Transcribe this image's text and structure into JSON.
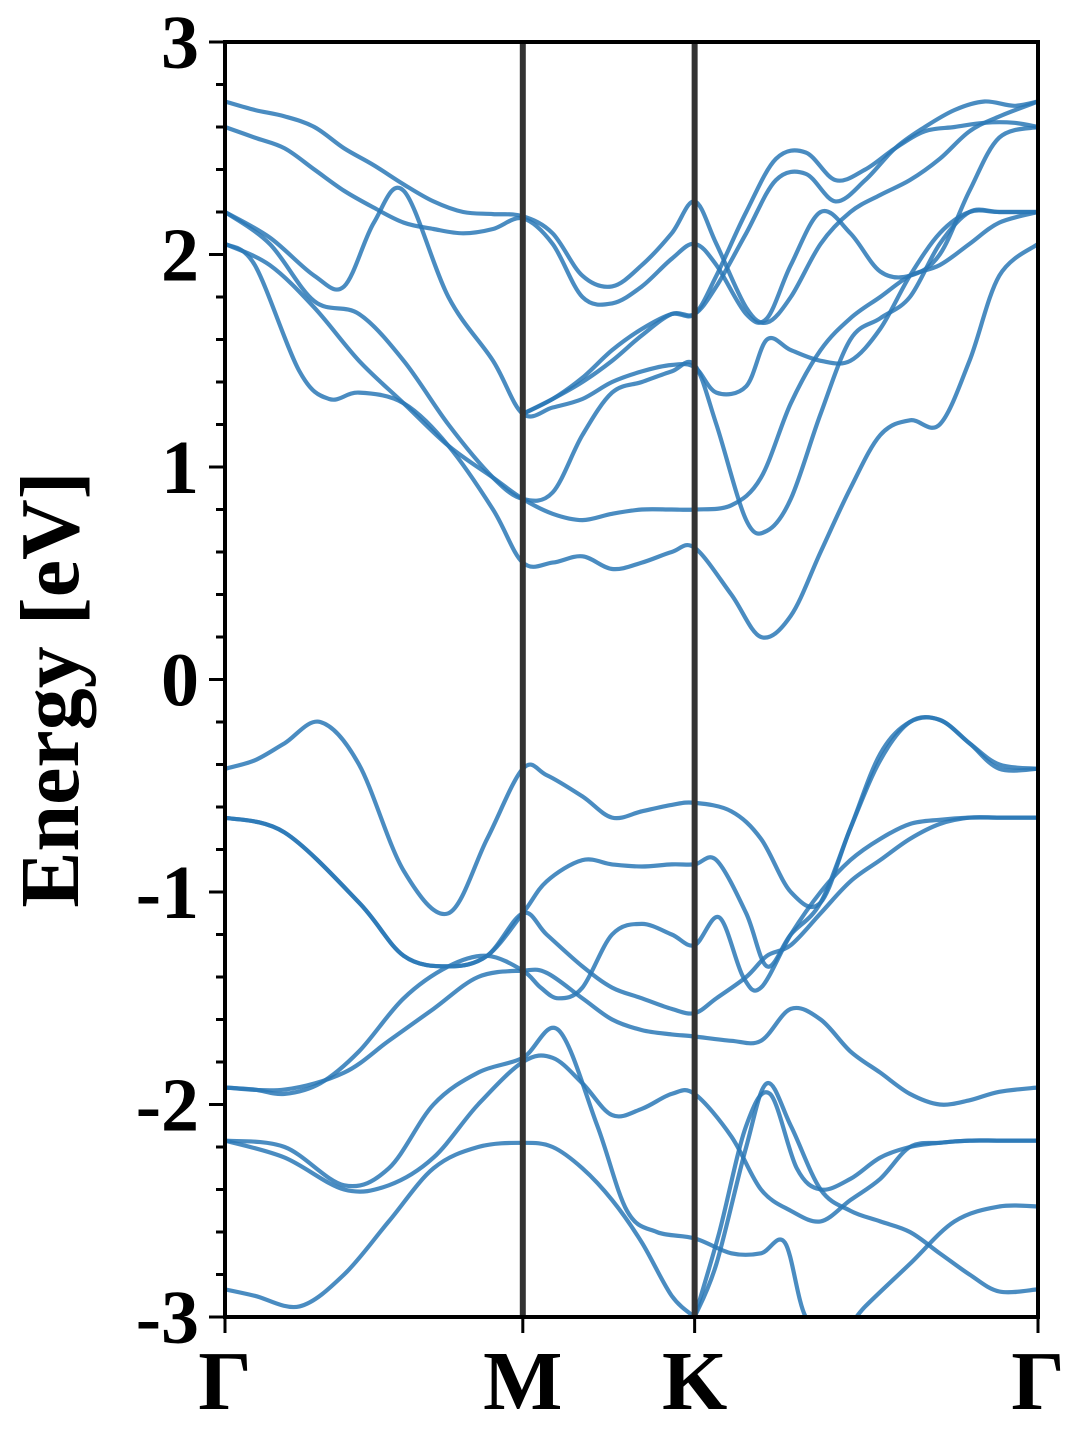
{
  "chart_data": {
    "type": "line",
    "title": "",
    "xlabel": "",
    "ylabel": "Energy [eV]",
    "ylim": [
      -3,
      3
    ],
    "xlim": [
      0,
      2.73
    ],
    "grid": false,
    "legend": "none",
    "band_color": "#2a78b6",
    "kpoint_line_color": "#333333",
    "x_ticks": [
      {
        "label": "Γ",
        "value": 0
      },
      {
        "label": "M",
        "value": 1.0
      },
      {
        "label": "K",
        "value": 1.577
      },
      {
        "label": "Γ",
        "value": 2.73
      }
    ],
    "y_ticks": [
      {
        "label": "-3",
        "value": -3
      },
      {
        "label": "-2",
        "value": -2
      },
      {
        "label": "-1",
        "value": -1
      },
      {
        "label": "0",
        "value": 0
      },
      {
        "label": "1",
        "value": 1
      },
      {
        "label": "2",
        "value": 2
      },
      {
        "label": "3",
        "value": 3
      }
    ],
    "kpoint_lines": [
      1.0,
      1.577
    ],
    "series": [
      {
        "x": [
          0,
          0.1,
          0.2,
          0.32,
          0.45,
          0.6,
          0.75,
          0.88,
          1.0,
          1.08,
          1.2,
          1.3,
          1.4,
          1.5,
          1.577,
          1.7,
          1.8,
          1.9,
          2.0,
          2.1,
          2.2,
          2.3,
          2.4,
          2.5,
          2.6,
          2.73
        ],
        "y": [
          -0.42,
          -0.38,
          -0.3,
          -0.2,
          -0.4,
          -0.9,
          -1.1,
          -0.75,
          -0.42,
          -0.45,
          -0.55,
          -0.65,
          -0.62,
          -0.59,
          -0.58,
          -0.62,
          -0.75,
          -1.0,
          -1.05,
          -0.7,
          -0.38,
          -0.2,
          -0.19,
          -0.3,
          -0.4,
          -0.42
        ]
      },
      {
        "x": [
          0,
          0.2,
          0.45,
          0.6,
          0.75,
          0.88,
          1.0,
          1.08,
          1.2,
          1.3,
          1.4,
          1.5,
          1.577,
          1.65,
          1.75,
          1.82,
          1.9,
          2.0,
          2.1,
          2.2,
          2.3,
          2.4,
          2.5,
          2.6,
          2.73
        ],
        "y": [
          -0.65,
          -0.72,
          -1.05,
          -1.3,
          -1.35,
          -1.3,
          -1.1,
          -0.95,
          -0.85,
          -0.87,
          -0.88,
          -0.87,
          -0.87,
          -0.85,
          -1.1,
          -1.35,
          -1.2,
          -1.05,
          -0.7,
          -0.35,
          -0.2,
          -0.19,
          -0.3,
          -0.42,
          -0.42
        ]
      },
      {
        "x": [
          0,
          0.2,
          0.45,
          0.6,
          0.75,
          0.88,
          1.0,
          1.08,
          1.2,
          1.3,
          1.4,
          1.5,
          1.577,
          1.65,
          1.75,
          1.82,
          1.9,
          2.0,
          2.1,
          2.2,
          2.3,
          2.4,
          2.5,
          2.6,
          2.73
        ],
        "y": [
          -0.65,
          -0.72,
          -1.05,
          -1.3,
          -1.35,
          -1.3,
          -1.1,
          -1.2,
          -1.35,
          -1.45,
          -1.5,
          -1.55,
          -1.57,
          -1.5,
          -1.4,
          -1.3,
          -1.25,
          -1.1,
          -0.95,
          -0.85,
          -0.75,
          -0.68,
          -0.65,
          -0.65,
          -0.65
        ]
      },
      {
        "x": [
          0,
          0.1,
          0.2,
          0.32,
          0.45,
          0.6,
          0.75,
          0.88,
          1.0,
          1.06,
          1.12,
          1.2,
          1.3,
          1.4,
          1.5,
          1.577,
          1.66,
          1.74,
          1.8,
          1.9,
          2.0,
          2.1,
          2.2,
          2.3,
          2.4,
          2.5,
          2.6,
          2.73
        ],
        "y": [
          -1.92,
          -1.93,
          -1.95,
          -1.9,
          -1.75,
          -1.5,
          -1.35,
          -1.3,
          -1.37,
          -1.45,
          -1.5,
          -1.45,
          -1.2,
          -1.15,
          -1.2,
          -1.25,
          -1.12,
          -1.4,
          -1.45,
          -1.2,
          -1.0,
          -0.85,
          -0.75,
          -0.68,
          -0.66,
          -0.65,
          -0.65,
          -0.65
        ]
      },
      {
        "x": [
          0,
          0.2,
          0.4,
          0.55,
          0.7,
          0.85,
          1.0,
          1.1,
          1.2,
          1.3,
          1.4,
          1.5,
          1.577,
          1.7,
          1.8,
          1.9,
          2.0,
          2.1,
          2.2,
          2.3,
          2.4,
          2.5,
          2.6,
          2.73
        ],
        "y": [
          -2.17,
          -2.25,
          -2.4,
          -2.38,
          -2.25,
          -2.0,
          -1.8,
          -1.78,
          -1.9,
          -2.05,
          -2.02,
          -1.95,
          -1.95,
          -2.15,
          -2.4,
          -2.5,
          -2.55,
          -2.45,
          -2.35,
          -2.2,
          -2.18,
          -2.17,
          -2.17,
          -2.17
        ]
      },
      {
        "x": [
          0,
          0.2,
          0.4,
          0.55,
          0.7,
          0.85,
          1.0,
          1.08,
          1.2,
          1.3,
          1.4,
          1.5,
          1.577,
          1.7,
          1.8,
          1.9,
          2.0,
          2.1,
          2.2,
          2.3,
          2.4,
          2.5,
          2.6,
          2.73
        ],
        "y": [
          -1.92,
          -1.93,
          -1.85,
          -1.7,
          -1.55,
          -1.4,
          -1.37,
          -1.38,
          -1.5,
          -1.6,
          -1.65,
          -1.67,
          -1.68,
          -1.7,
          -1.7,
          -1.55,
          -1.6,
          -1.75,
          -1.85,
          -1.95,
          -2.0,
          -1.98,
          -1.94,
          -1.92
        ]
      },
      {
        "x": [
          0,
          0.1,
          0.25,
          0.4,
          0.55,
          0.7,
          0.85,
          1.0,
          1.1,
          1.2,
          1.3,
          1.4,
          1.5,
          1.577
        ],
        "y": [
          -2.87,
          -2.9,
          -2.95,
          -2.8,
          -2.55,
          -2.3,
          -2.2,
          -2.18,
          -2.2,
          -2.3,
          -2.45,
          -2.65,
          -2.9,
          -3.0
        ]
      },
      {
        "x": [
          0,
          0.2,
          0.4,
          0.55,
          0.7,
          0.85,
          1.0,
          1.12,
          1.25,
          1.35,
          1.45,
          1.577,
          1.7,
          1.8,
          1.88,
          1.95,
          2.05,
          2.15,
          2.3,
          2.45,
          2.6,
          2.73
        ],
        "y": [
          -2.17,
          -2.2,
          -2.38,
          -2.3,
          -2.0,
          -1.85,
          -1.78,
          -1.65,
          -2.1,
          -2.5,
          -2.6,
          -2.63,
          -2.7,
          -2.7,
          -2.65,
          -3.0,
          -3.1,
          -2.95,
          -2.75,
          -2.55,
          -2.48,
          -2.48
        ]
      },
      {
        "x": [
          1.577,
          1.65,
          1.75,
          1.82,
          1.9,
          2.0,
          2.1,
          2.2,
          2.3,
          2.4,
          2.5,
          2.6,
          2.73
        ],
        "y": [
          -3.0,
          -2.75,
          -2.2,
          -1.9,
          -2.1,
          -2.4,
          -2.5,
          -2.55,
          -2.6,
          -2.7,
          -2.8,
          -2.88,
          -2.87
        ]
      },
      {
        "x": [
          1.577,
          1.66,
          1.75,
          1.83,
          1.92,
          2.0,
          2.1,
          2.2,
          2.3,
          2.4,
          2.5,
          2.6,
          2.73
        ],
        "y": [
          -3.0,
          -2.6,
          -2.1,
          -1.95,
          -2.3,
          -2.4,
          -2.35,
          -2.25,
          -2.2,
          -2.18,
          -2.17,
          -2.17,
          -2.17
        ]
      },
      {
        "x": [
          0,
          0.1,
          0.25,
          0.35,
          0.45,
          0.6,
          0.75,
          0.9,
          1.0,
          1.1,
          1.2,
          1.3,
          1.4,
          1.5,
          1.577,
          1.7,
          1.8,
          1.9,
          2.0,
          2.1,
          2.2,
          2.3,
          2.4,
          2.5,
          2.6,
          2.73
        ],
        "y": [
          2.05,
          1.95,
          1.45,
          1.32,
          1.35,
          1.3,
          1.1,
          0.8,
          0.55,
          0.55,
          0.58,
          0.52,
          0.55,
          0.6,
          0.62,
          0.4,
          0.2,
          0.3,
          0.6,
          0.9,
          1.15,
          1.22,
          1.2,
          1.5,
          1.9,
          2.05
        ]
      },
      {
        "x": [
          0,
          0.15,
          0.3,
          0.45,
          0.6,
          0.75,
          0.9,
          1.0,
          1.1,
          1.2,
          1.3,
          1.4,
          1.5,
          1.577,
          1.7,
          1.8,
          1.9,
          2.0,
          2.1,
          2.2,
          2.3,
          2.4,
          2.5,
          2.6,
          2.73
        ],
        "y": [
          2.05,
          1.95,
          1.75,
          1.5,
          1.3,
          1.1,
          0.95,
          0.85,
          0.78,
          0.75,
          0.78,
          0.8,
          0.8,
          0.8,
          0.82,
          0.95,
          1.3,
          1.55,
          1.7,
          1.8,
          1.9,
          1.95,
          2.05,
          2.15,
          2.2
        ]
      },
      {
        "x": [
          0,
          0.15,
          0.3,
          0.4,
          0.5,
          0.6,
          0.75,
          0.9,
          1.0,
          1.1,
          1.2,
          1.3,
          1.4,
          1.5,
          1.577,
          1.65,
          1.75,
          1.82,
          1.9,
          2.0,
          2.1,
          2.2,
          2.3,
          2.4,
          2.5,
          2.6,
          2.73
        ],
        "y": [
          2.2,
          2.08,
          1.9,
          1.85,
          2.15,
          2.3,
          1.8,
          1.5,
          1.25,
          1.28,
          1.32,
          1.4,
          1.45,
          1.48,
          1.47,
          1.35,
          1.38,
          1.6,
          1.55,
          1.5,
          1.5,
          1.65,
          1.9,
          2.1,
          2.2,
          2.2,
          2.2
        ]
      },
      {
        "x": [
          0,
          0.15,
          0.3,
          0.45,
          0.6,
          0.75,
          0.9,
          1.0,
          1.1,
          1.2,
          1.3,
          1.4,
          1.5,
          1.577,
          1.65,
          1.75,
          1.82,
          1.9,
          2.0,
          2.1,
          2.2,
          2.3,
          2.4,
          2.5,
          2.6,
          2.73
        ],
        "y": [
          2.2,
          2.05,
          1.78,
          1.72,
          1.5,
          1.2,
          0.95,
          0.85,
          0.88,
          1.15,
          1.35,
          1.4,
          1.45,
          1.48,
          1.2,
          0.75,
          0.7,
          0.85,
          1.25,
          1.6,
          1.7,
          1.8,
          2.05,
          2.2,
          2.2,
          2.2
        ]
      },
      {
        "x": [
          0,
          0.1,
          0.2,
          0.3,
          0.4,
          0.5,
          0.6,
          0.7,
          0.8,
          0.9,
          1.0,
          1.1,
          1.2,
          1.3,
          1.4,
          1.5,
          1.577,
          1.65,
          1.75,
          1.82,
          1.9,
          2.0,
          2.1,
          2.2,
          2.3,
          2.4,
          2.5,
          2.6,
          2.73
        ],
        "y": [
          2.72,
          2.68,
          2.65,
          2.6,
          2.5,
          2.42,
          2.33,
          2.25,
          2.2,
          2.19,
          2.18,
          2.1,
          1.9,
          1.85,
          1.95,
          2.1,
          2.25,
          2.05,
          1.75,
          1.68,
          1.8,
          2.05,
          2.2,
          2.28,
          2.35,
          2.45,
          2.58,
          2.65,
          2.72
        ]
      },
      {
        "x": [
          0,
          0.1,
          0.2,
          0.3,
          0.4,
          0.5,
          0.6,
          0.7,
          0.8,
          0.9,
          1.0,
          1.1,
          1.2,
          1.3,
          1.4,
          1.5,
          1.577,
          1.65,
          1.75,
          1.82,
          1.9,
          2.0,
          2.1,
          2.2,
          2.3,
          2.4,
          2.5,
          2.6,
          2.73
        ],
        "y": [
          2.6,
          2.55,
          2.5,
          2.4,
          2.3,
          2.22,
          2.15,
          2.12,
          2.1,
          2.12,
          2.17,
          2.05,
          1.8,
          1.77,
          1.85,
          1.98,
          2.05,
          1.95,
          1.72,
          1.7,
          1.95,
          2.2,
          2.1,
          1.92,
          1.9,
          2.0,
          2.3,
          2.55,
          2.6
        ]
      },
      {
        "x": [
          1.0,
          1.1,
          1.2,
          1.3,
          1.4,
          1.5,
          1.577,
          1.65,
          1.75,
          1.85,
          1.95,
          2.05,
          2.15,
          2.25,
          2.35,
          2.45,
          2.55,
          2.65,
          2.73
        ],
        "y": [
          1.25,
          1.32,
          1.4,
          1.5,
          1.62,
          1.72,
          1.72,
          1.85,
          2.1,
          2.35,
          2.38,
          2.25,
          2.35,
          2.5,
          2.6,
          2.68,
          2.72,
          2.7,
          2.72
        ]
      },
      {
        "x": [
          1.0,
          1.1,
          1.2,
          1.3,
          1.4,
          1.5,
          1.577,
          1.65,
          1.75,
          1.85,
          1.95,
          2.05,
          2.15,
          2.25,
          2.35,
          2.45,
          2.55,
          2.65,
          2.73
        ],
        "y": [
          1.25,
          1.32,
          1.42,
          1.55,
          1.65,
          1.72,
          1.72,
          1.9,
          2.2,
          2.45,
          2.48,
          2.35,
          2.4,
          2.5,
          2.58,
          2.6,
          2.62,
          2.62,
          2.6
        ]
      }
    ]
  }
}
